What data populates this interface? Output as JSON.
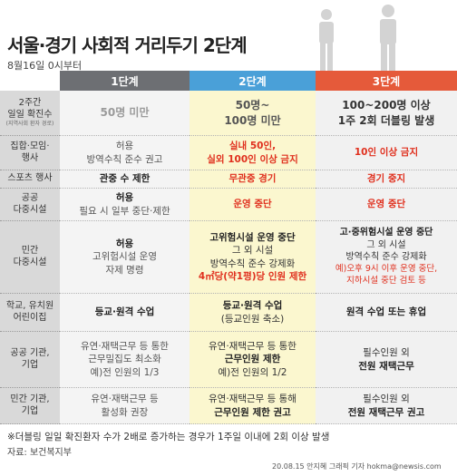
{
  "title": "서울·경기 사회적 거리두기 2단계",
  "subtitle": "8월16일 0시부터",
  "stages": [
    "1단계",
    "2단계",
    "3단계"
  ],
  "rows": [
    {
      "label": [
        "2주간",
        "일일 확진수"
      ],
      "note": "(지역사회 환자 경로)",
      "s1": [
        "50명 미만"
      ],
      "s2": [
        "50명~",
        "100명 미만"
      ],
      "s3": [
        "100~200명 이상",
        "1주 2회 더블링 발생"
      ]
    },
    {
      "label": [
        "집합·모임·",
        "행사"
      ],
      "s1": [
        "허용",
        "방역수칙 준수 권고"
      ],
      "s2": [
        "실내 50인,",
        "실외 100인 이상 금지"
      ],
      "s3": [
        "10인 이상 금지"
      ]
    },
    {
      "label": [
        "스포츠 행사"
      ],
      "s1": [
        "관중 수 제한"
      ],
      "s2": [
        "무관중 경기"
      ],
      "s3": [
        "경기 중지"
      ]
    },
    {
      "label": [
        "공공",
        "다중시설"
      ],
      "s1": [
        "허용",
        "필요 시 일부 중단·제한"
      ],
      "s2": [
        "운영 중단"
      ],
      "s3": [
        "운영 중단"
      ]
    },
    {
      "label": [
        "민간",
        "다중시설"
      ],
      "s1": [
        "허용",
        "고위험시설 운영",
        "자제 명령"
      ],
      "s2": [
        "고위험시설 운영 중단",
        "그 외 시설",
        "방역수칙 준수 강제화",
        "4㎡당(약1평)당 인원 제한"
      ],
      "s3": [
        "고·중위험시설 운영 중단",
        "그 외 시설",
        "방역수칙 준수 강제화",
        "예)오후 9시 이후 운영 중단,",
        "지하시설 중단 검토 등"
      ]
    },
    {
      "label": [
        "학교, 유치원",
        "어린이집"
      ],
      "s1": [
        "등교·원격 수업"
      ],
      "s2": [
        "등교·원격 수업",
        "(등교인원 축소)"
      ],
      "s3": [
        "원격 수업 또는 휴업"
      ]
    },
    {
      "label": [
        "공공 기관,",
        "기업"
      ],
      "s1": [
        "유연·재택근무 등 통한",
        "근무밀집도 최소화",
        "예)전 인원의 1/3"
      ],
      "s2": [
        "유연·재택근무 등 통한",
        "근무인원 제한",
        "예)전 인원의 1/2"
      ],
      "s3": [
        "필수인원 외",
        "전원 재택근무"
      ]
    },
    {
      "label": [
        "민간 기관,",
        "기업"
      ],
      "s1": [
        "유연·재택근무 등",
        "활성화 권장"
      ],
      "s2": [
        "유연·재택근무 등 통해",
        "근무인원 제한 권고"
      ],
      "s3": [
        "필수인원 외",
        "전원 재택근무 권고"
      ]
    }
  ],
  "footnote": "※더블링 일일 확진환자 수가 2배로 증가하는 경우가 1주일 이내에 2회 이상 발생",
  "source": "자료: 보건복지부",
  "credit": "20.08.15 안지혜 그래픽 기자 hokma@newsis.com",
  "colors": {
    "stage1": "#6d6f73",
    "stage2": "#4aa0d8",
    "stage3": "#e55a3a",
    "highlight": "#e0301e"
  }
}
